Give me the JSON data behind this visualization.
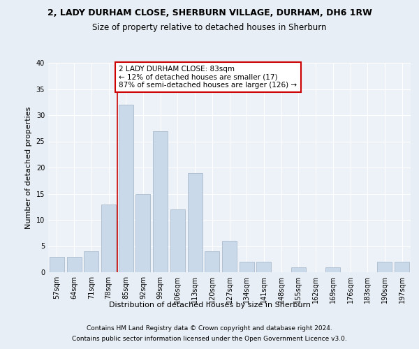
{
  "title": "2, LADY DURHAM CLOSE, SHERBURN VILLAGE, DURHAM, DH6 1RW",
  "subtitle": "Size of property relative to detached houses in Sherburn",
  "xlabel": "Distribution of detached houses by size in Sherburn",
  "ylabel": "Number of detached properties",
  "bin_labels": [
    "57sqm",
    "64sqm",
    "71sqm",
    "78sqm",
    "85sqm",
    "92sqm",
    "99sqm",
    "106sqm",
    "113sqm",
    "120sqm",
    "127sqm",
    "134sqm",
    "141sqm",
    "148sqm",
    "155sqm",
    "162sqm",
    "169sqm",
    "176sqm",
    "183sqm",
    "190sqm",
    "197sqm"
  ],
  "bin_values": [
    3,
    3,
    4,
    13,
    32,
    15,
    27,
    12,
    19,
    4,
    6,
    2,
    2,
    0,
    1,
    0,
    1,
    0,
    0,
    2,
    2
  ],
  "bar_color": "#c9d9ea",
  "bar_edge_color": "#aabbcc",
  "marker_line_color": "#cc0000",
  "annotation_text": "2 LADY DURHAM CLOSE: 83sqm\n← 12% of detached houses are smaller (17)\n87% of semi-detached houses are larger (126) →",
  "annotation_box_facecolor": "#ffffff",
  "annotation_box_edgecolor": "#cc0000",
  "ylim": [
    0,
    40
  ],
  "yticks": [
    0,
    5,
    10,
    15,
    20,
    25,
    30,
    35,
    40
  ],
  "footer_line1": "Contains HM Land Registry data © Crown copyright and database right 2024.",
  "footer_line2": "Contains public sector information licensed under the Open Government Licence v3.0.",
  "bg_color": "#e8eef5",
  "plot_bg_color": "#edf2f8",
  "grid_color": "#ffffff",
  "title_fontsize": 9,
  "subtitle_fontsize": 8.5,
  "axis_label_fontsize": 8,
  "tick_fontsize": 7,
  "annotation_fontsize": 7.5,
  "footer_fontsize": 6.5
}
